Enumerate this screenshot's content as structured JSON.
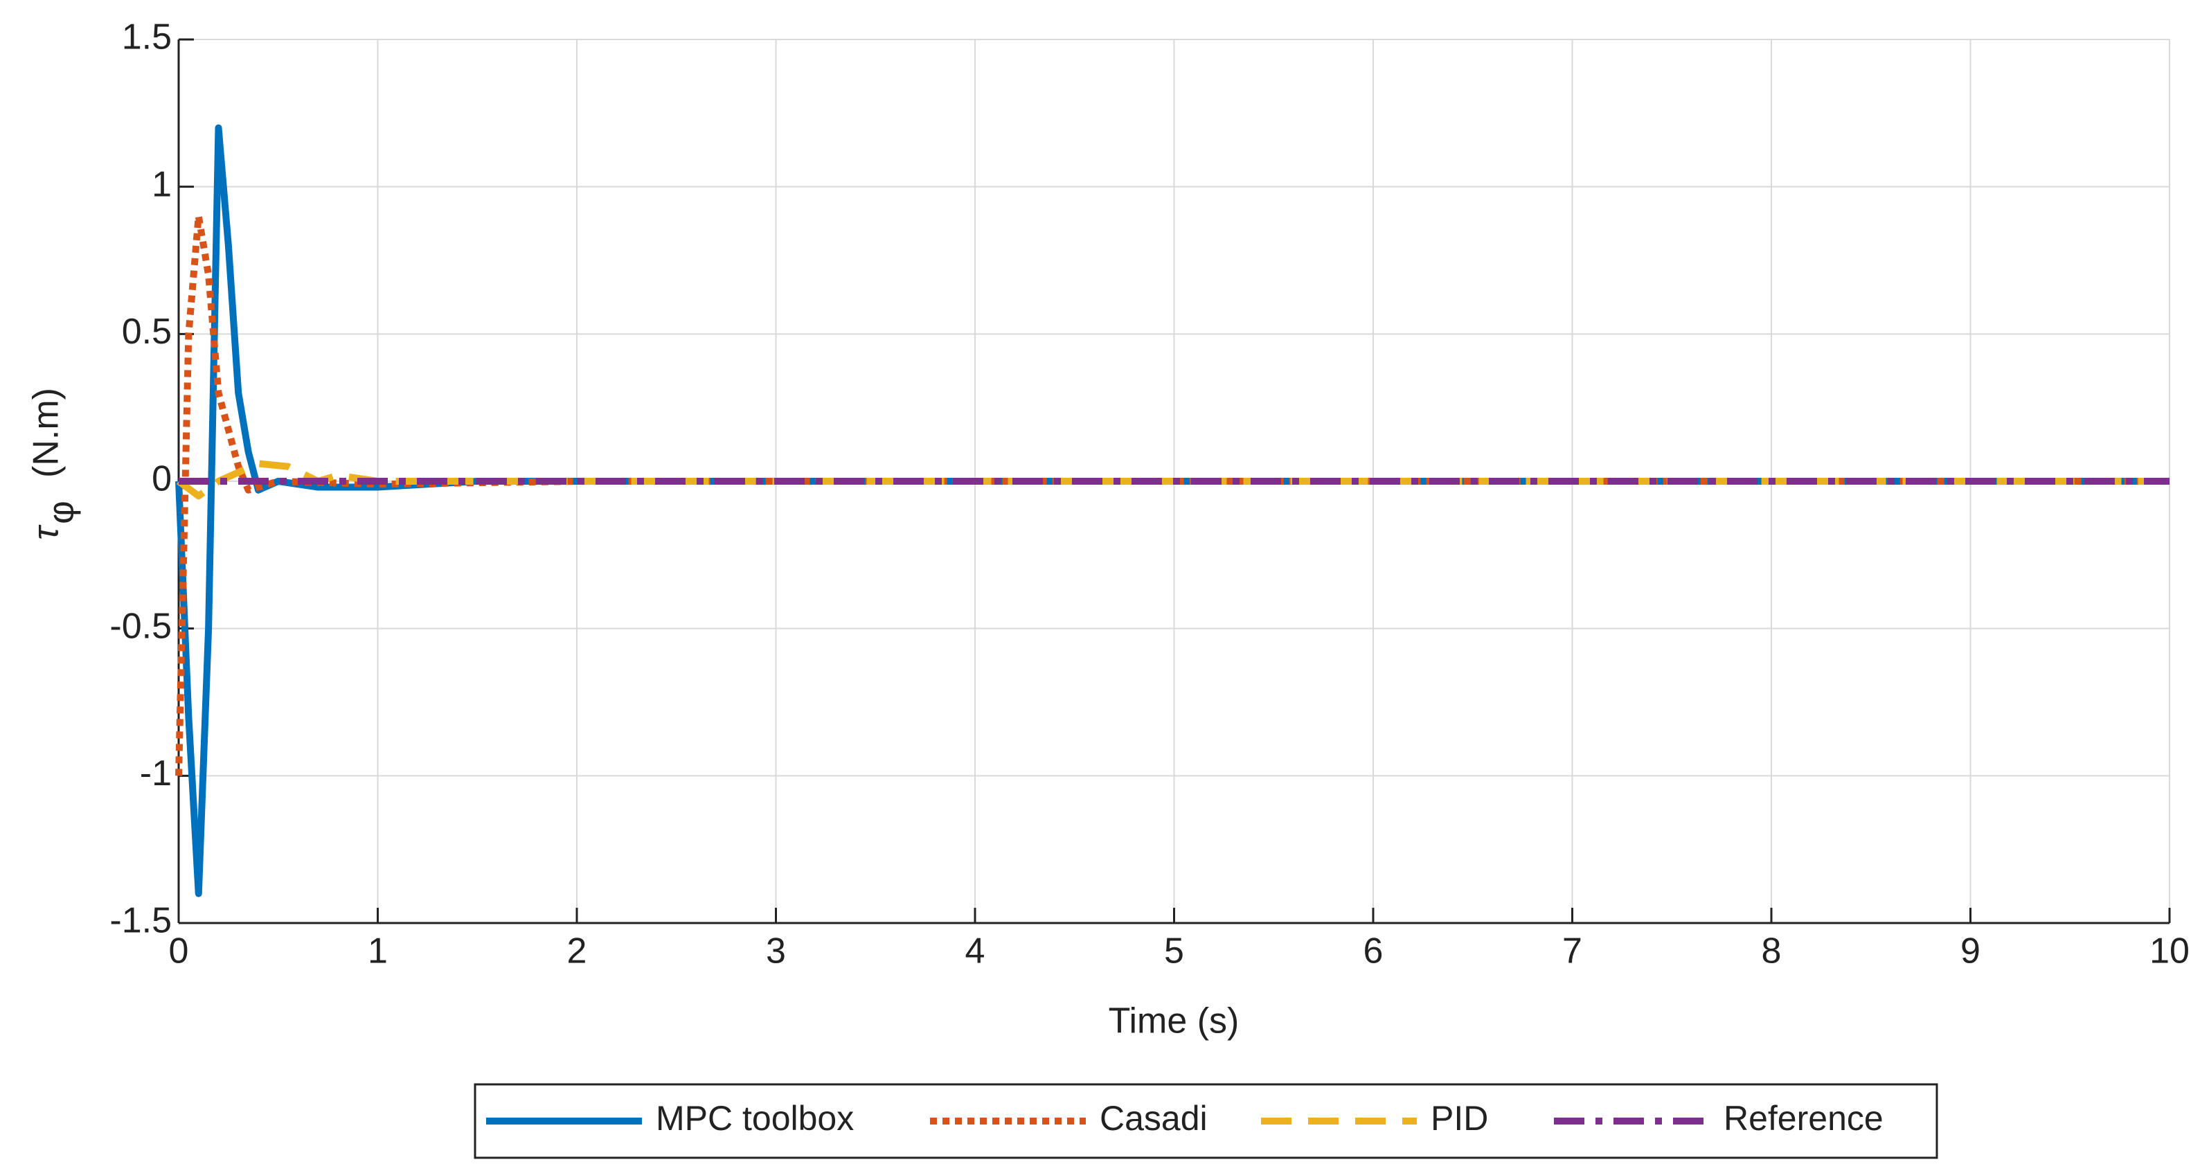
{
  "chart_data": {
    "type": "line",
    "xlabel": "Time (s)",
    "ylabel": "τ",
    "ylabel_sub": "φ",
    "ylabel_unit": "(N.m)",
    "xlim": [
      0,
      10
    ],
    "ylim": [
      -1.5,
      1.5
    ],
    "xticks": [
      0,
      1,
      2,
      3,
      4,
      5,
      6,
      7,
      8,
      9,
      10
    ],
    "yticks": [
      -1.5,
      -1,
      -0.5,
      0,
      0.5,
      1,
      1.5
    ],
    "grid": true,
    "legend": "bottom-outside",
    "series": [
      {
        "name": "MPC toolbox",
        "color": "#0072bd",
        "dash": "solid",
        "x": [
          0,
          0.05,
          0.1,
          0.15,
          0.2,
          0.25,
          0.3,
          0.35,
          0.4,
          0.5,
          0.7,
          1,
          1.5,
          10
        ],
        "values": [
          0,
          -0.8,
          -1.4,
          -0.5,
          1.2,
          0.8,
          0.3,
          0.1,
          -0.03,
          0,
          -0.02,
          -0.02,
          0,
          0
        ]
      },
      {
        "name": "Casadi",
        "color": "#d95319",
        "dash": "dotted",
        "x": [
          0,
          0.05,
          0.1,
          0.15,
          0.2,
          0.3,
          0.35,
          0.5,
          1,
          2,
          10
        ],
        "values": [
          -1,
          0.5,
          0.9,
          0.7,
          0.3,
          0.05,
          -0.03,
          0,
          -0.01,
          0,
          0
        ]
      },
      {
        "name": "PID",
        "color": "#edb120",
        "dash": "dashed",
        "x": [
          0,
          0.1,
          0.2,
          0.4,
          0.55,
          0.7,
          0.8,
          1,
          10
        ],
        "values": [
          0,
          -0.05,
          0,
          0.06,
          0.05,
          0,
          0.02,
          0,
          0
        ]
      },
      {
        "name": "Reference",
        "color": "#7e2f8e",
        "dash": "dashdot",
        "x": [
          0,
          10
        ],
        "values": [
          0,
          0
        ]
      }
    ]
  }
}
